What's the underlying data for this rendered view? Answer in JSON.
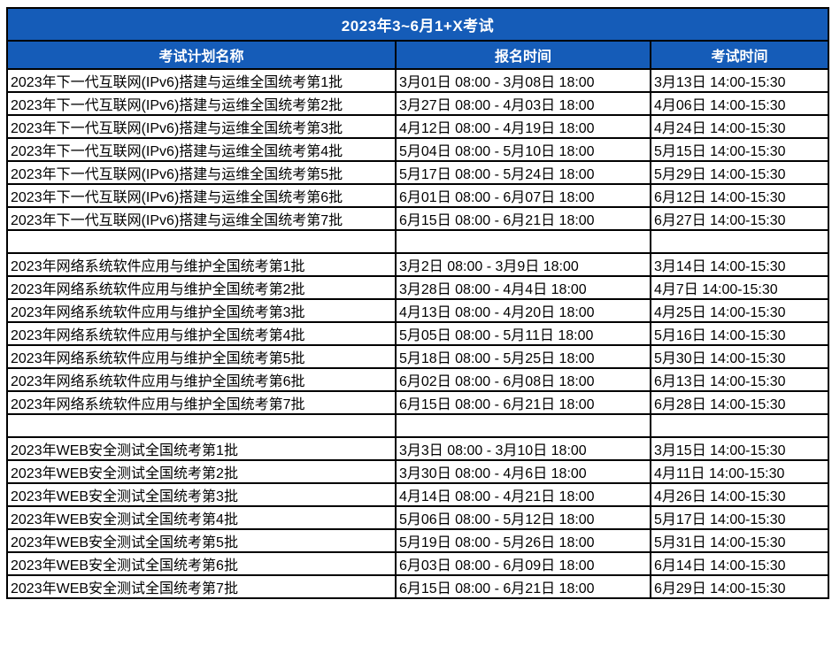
{
  "title": "2023年3~6月1+X考试",
  "columns": [
    {
      "label": "考试计划名称"
    },
    {
      "label": "报名时间"
    },
    {
      "label": "考试时间"
    }
  ],
  "colors": {
    "header_bg": "#155CB8",
    "header_text": "#FFFFFF",
    "border": "#000000",
    "row_bg": "#FFFFFF",
    "row_text": "#000000"
  },
  "rows": [
    {
      "plan": "2023年下一代互联网(IPv6)搭建与运维全国统考第1批",
      "registration": "3月01日 08:00 - 3月08日 18:00",
      "exam": "3月13日 14:00-15:30"
    },
    {
      "plan": "2023年下一代互联网(IPv6)搭建与运维全国统考第2批",
      "registration": "3月27日 08:00 - 4月03日 18:00",
      "exam": "4月06日 14:00-15:30"
    },
    {
      "plan": "2023年下一代互联网(IPv6)搭建与运维全国统考第3批",
      "registration": "4月12日 08:00 - 4月19日 18:00",
      "exam": "4月24日 14:00-15:30"
    },
    {
      "plan": "2023年下一代互联网(IPv6)搭建与运维全国统考第4批",
      "registration": "5月04日 08:00 - 5月10日 18:00",
      "exam": "5月15日 14:00-15:30"
    },
    {
      "plan": "2023年下一代互联网(IPv6)搭建与运维全国统考第5批",
      "registration": "5月17日 08:00 - 5月24日 18:00",
      "exam": "5月29日 14:00-15:30"
    },
    {
      "plan": "2023年下一代互联网(IPv6)搭建与运维全国统考第6批",
      "registration": "6月01日 08:00 - 6月07日 18:00",
      "exam": "6月12日 14:00-15:30"
    },
    {
      "plan": "2023年下一代互联网(IPv6)搭建与运维全国统考第7批",
      "registration": "6月15日 08:00 - 6月21日 18:00",
      "exam": "6月27日 14:00-15:30"
    },
    {
      "plan": "",
      "registration": "",
      "exam": ""
    },
    {
      "plan": "2023年网络系统软件应用与维护全国统考第1批",
      "registration": "3月2日 08:00 - 3月9日 18:00",
      "exam": "3月14日 14:00-15:30"
    },
    {
      "plan": "2023年网络系统软件应用与维护全国统考第2批",
      "registration": "3月28日 08:00 - 4月4日 18:00",
      "exam": "4月7日 14:00-15:30"
    },
    {
      "plan": "2023年网络系统软件应用与维护全国统考第3批",
      "registration": "4月13日 08:00 - 4月20日 18:00",
      "exam": "4月25日 14:00-15:30"
    },
    {
      "plan": "2023年网络系统软件应用与维护全国统考第4批",
      "registration": "5月05日 08:00 - 5月11日 18:00",
      "exam": "5月16日 14:00-15:30"
    },
    {
      "plan": "2023年网络系统软件应用与维护全国统考第5批",
      "registration": "5月18日 08:00 - 5月25日 18:00",
      "exam": "5月30日 14:00-15:30"
    },
    {
      "plan": "2023年网络系统软件应用与维护全国统考第6批",
      "registration": "6月02日 08:00 - 6月08日 18:00",
      "exam": "6月13日 14:00-15:30"
    },
    {
      "plan": "2023年网络系统软件应用与维护全国统考第7批",
      "registration": "6月15日 08:00 - 6月21日 18:00",
      "exam": "6月28日 14:00-15:30"
    },
    {
      "plan": "",
      "registration": "",
      "exam": ""
    },
    {
      "plan": "2023年WEB安全测试全国统考第1批",
      "registration": "3月3日 08:00 - 3月10日 18:00",
      "exam": "3月15日 14:00-15:30"
    },
    {
      "plan": "2023年WEB安全测试全国统考第2批",
      "registration": "3月30日 08:00 - 4月6日 18:00",
      "exam": "4月11日 14:00-15:30"
    },
    {
      "plan": "2023年WEB安全测试全国统考第3批",
      "registration": "4月14日 08:00 - 4月21日 18:00",
      "exam": "4月26日 14:00-15:30"
    },
    {
      "plan": "2023年WEB安全测试全国统考第4批",
      "registration": "5月06日 08:00 - 5月12日 18:00",
      "exam": "5月17日 14:00-15:30"
    },
    {
      "plan": "2023年WEB安全测试全国统考第5批",
      "registration": "5月19日 08:00 - 5月26日 18:00",
      "exam": "5月31日 14:00-15:30"
    },
    {
      "plan": "2023年WEB安全测试全国统考第6批",
      "registration": "6月03日 08:00 - 6月09日 18:00",
      "exam": "6月14日 14:00-15:30"
    },
    {
      "plan": "2023年WEB安全测试全国统考第7批",
      "registration": "6月15日 08:00 - 6月21日 18:00",
      "exam": "6月29日 14:00-15:30"
    }
  ]
}
